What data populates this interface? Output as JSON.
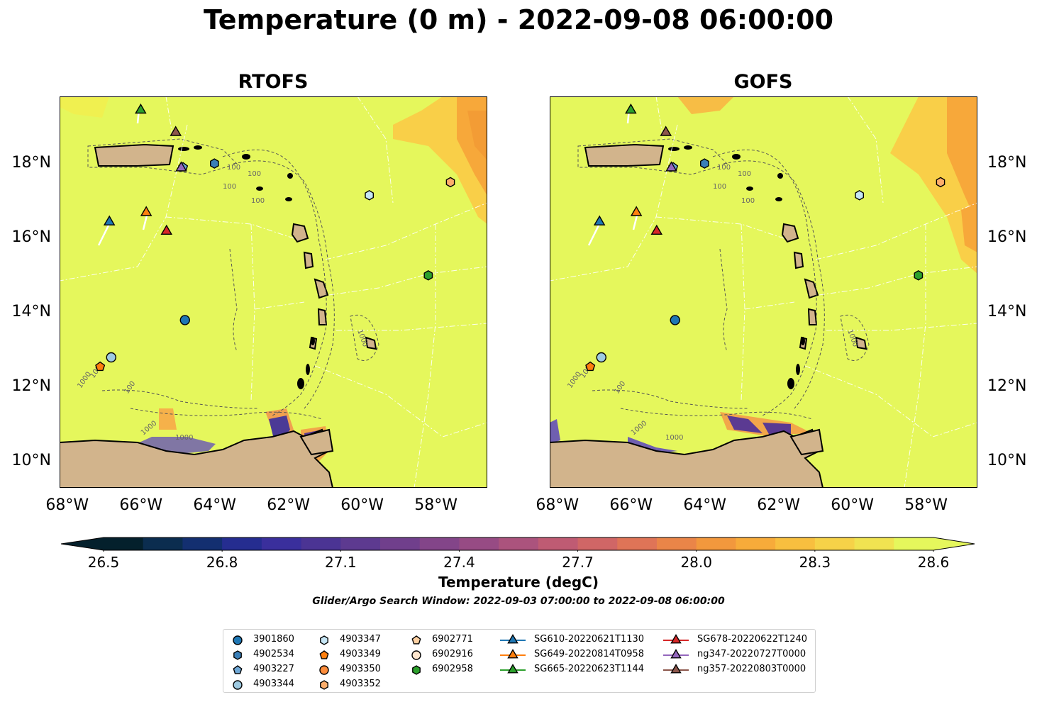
{
  "title": "Temperature (0 m) - 2022-09-08 06:00:00",
  "panels": [
    {
      "title": "RTOFS",
      "lat_labels_side": "left"
    },
    {
      "title": "GOFS",
      "lat_labels_side": "right"
    }
  ],
  "axes": {
    "lon_ticks": [
      "68°W",
      "66°W",
      "64°W",
      "62°W",
      "60°W",
      "58°W"
    ],
    "lat_ticks": [
      "18°N",
      "16°N",
      "14°N",
      "12°N",
      "10°N"
    ],
    "lon_range": [
      -68.2,
      -56.6
    ],
    "lat_range": [
      9.3,
      19.8
    ]
  },
  "contour_labels": {
    "rtofs": [
      "100",
      "100",
      "1000",
      "1000",
      "100",
      "1000",
      "1000",
      "100",
      "100",
      "1000"
    ],
    "gofs": [
      "100",
      "100",
      "1000",
      "1000",
      "100",
      "1000",
      "1000",
      "100",
      "100",
      "1000"
    ]
  },
  "colorbar": {
    "label": "Temperature (degC)",
    "ticks": [
      "26.5",
      "26.8",
      "27.1",
      "27.4",
      "27.7",
      "28.0",
      "28.3",
      "28.6"
    ],
    "range": [
      26.5,
      28.6
    ],
    "colormap": "thermal",
    "extend": "both"
  },
  "search_window": "Glider/Argo Search Window: 2022-09-03 07:00:00 to 2022-09-08 06:00:00",
  "legend": {
    "placement": "bottom-center",
    "argo": [
      {
        "id": "3901860",
        "marker": "circle",
        "color": "#1f77b4",
        "lon": -64.8,
        "lat": 13.8
      },
      {
        "id": "4902534",
        "marker": "hexagon",
        "color": "#3a7fb8",
        "lon": -64.0,
        "lat": 18.0
      },
      {
        "id": "4903227",
        "marker": "pentagon",
        "color": "#6fa8d6",
        "lon": -64.85,
        "lat": 17.9
      },
      {
        "id": "4903344",
        "marker": "circle",
        "color": "#9ecae1",
        "lon": -66.8,
        "lat": 12.8
      },
      {
        "id": "4903347",
        "marker": "hexagon",
        "color": "#c6e6f5",
        "lon": -59.8,
        "lat": 17.15
      },
      {
        "id": "4903349",
        "marker": "pentagon",
        "color": "#ff7f0e",
        "lon": -67.1,
        "lat": 12.55
      },
      {
        "id": "4903350",
        "marker": "circle",
        "color": "#fd8d3c",
        "lon": null,
        "lat": null
      },
      {
        "id": "4903352",
        "marker": "hexagon",
        "color": "#fdae6b",
        "lon": -57.6,
        "lat": 17.5
      },
      {
        "id": "6902771",
        "marker": "pentagon",
        "color": "#fdd0a2",
        "lon": null,
        "lat": null
      },
      {
        "id": "6902916",
        "marker": "circle",
        "color": "#fee6ce",
        "lon": null,
        "lat": null
      },
      {
        "id": "6902958",
        "marker": "hexagon",
        "color": "#2ca02c",
        "lon": -58.2,
        "lat": 15.0
      }
    ],
    "gliders": [
      {
        "id": "SG610-20220621T1130",
        "color": "#1f77b4",
        "lon": -66.85,
        "lat": 16.45
      },
      {
        "id": "SG649-20220814T0958",
        "color": "#ff7f0e",
        "lon": -65.85,
        "lat": 16.7
      },
      {
        "id": "SG665-20220623T1144",
        "color": "#2ca02c",
        "lon": -66.0,
        "lat": 19.45
      },
      {
        "id": "SG678-20220622T1240",
        "color": "#d62728",
        "lon": -65.3,
        "lat": 16.2
      },
      {
        "id": "ng347-20220727T0000",
        "color": "#9467bd",
        "lon": -64.9,
        "lat": 17.9
      },
      {
        "id": "ng357-20220803T0000",
        "color": "#8c564b",
        "lon": -65.05,
        "lat": 18.85
      }
    ]
  },
  "colors": {
    "ocean_warm": "#e5f75c",
    "warm_patch": "#f7a83a",
    "land": "#d2b48c",
    "cool_anomaly": "#5a4aa0",
    "eez_lines": "#ffffff",
    "isobath": "#555555"
  }
}
